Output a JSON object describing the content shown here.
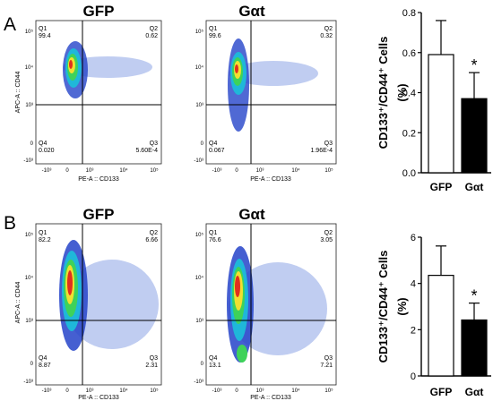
{
  "panels": [
    {
      "letter": "A",
      "flow_plots": [
        {
          "title": "GFP",
          "xlabel": "PE-A :: CD133",
          "ylabel": "APC-A :: CD44",
          "x_ticks": [
            "-10³",
            "0",
            "10³",
            "10⁴",
            "10⁵"
          ],
          "y_ticks": [
            "10⁵",
            "10⁴",
            "10³",
            "0",
            "-10³"
          ],
          "quadrants": [
            {
              "label": "Q1",
              "value": "99.4"
            },
            {
              "label": "Q2",
              "value": "0.62"
            },
            {
              "label": "Q3",
              "value": "5.60E-4"
            },
            {
              "label": "Q4",
              "value": "0.020"
            }
          ]
        },
        {
          "title": "Gαt",
          "xlabel": "PE-A :: CD133",
          "ylabel": "",
          "x_ticks": [
            "-10³",
            "0",
            "10³",
            "10⁴",
            "10⁵"
          ],
          "y_ticks": [
            "10⁵",
            "10⁴",
            "10³",
            "0",
            "-10³"
          ],
          "quadrants": [
            {
              "label": "Q1",
              "value": "99.6"
            },
            {
              "label": "Q2",
              "value": "0.32"
            },
            {
              "label": "Q3",
              "value": "1.96E-4"
            },
            {
              "label": "Q4",
              "value": "0.067"
            }
          ]
        }
      ]
    },
    {
      "letter": "B",
      "flow_plots": [
        {
          "title": "GFP",
          "xlabel": "PE-A :: CD133",
          "ylabel": "APC-A :: CD44",
          "x_ticks": [
            "-10³",
            "0",
            "10³",
            "10⁴",
            "10⁵"
          ],
          "y_ticks": [
            "10⁵",
            "10⁴",
            "10³",
            "0",
            "-10³"
          ],
          "quadrants": [
            {
              "label": "Q1",
              "value": "82.2"
            },
            {
              "label": "Q2",
              "value": "6.66"
            },
            {
              "label": "Q3",
              "value": "2.31"
            },
            {
              "label": "Q4",
              "value": "8.87"
            }
          ]
        },
        {
          "title": "Gαt",
          "xlabel": "PE-A :: CD133",
          "ylabel": "",
          "x_ticks": [
            "-10³",
            "0",
            "10³",
            "10⁴",
            "10⁵"
          ],
          "y_ticks": [
            "10⁵",
            "10⁴",
            "10³",
            "0",
            "-10³"
          ],
          "quadrants": [
            {
              "label": "Q1",
              "value": "76.6"
            },
            {
              "label": "Q2",
              "value": "3.05"
            },
            {
              "label": "Q3",
              "value": "7.21"
            },
            {
              "label": "Q4",
              "value": "13.1"
            }
          ]
        }
      ]
    }
  ],
  "colors": {
    "gfp_bar": "#ffffff",
    "galphat_bar": "#000000",
    "density_low": "#1f3fbf",
    "density_high": "#d71e1e"
  },
  "chart_data": [
    {
      "type": "bar",
      "panel": "A",
      "categories": [
        "GFP",
        "Gαt"
      ],
      "values": [
        0.59,
        0.37
      ],
      "error_upper": [
        0.76,
        0.5
      ],
      "ylabel_main": "CD133⁺/CD44⁺ Cells",
      "ylabel_unit": "(%)",
      "ylim": [
        0.0,
        0.8
      ],
      "yticks": [
        "0.0",
        "0.2",
        "0.4",
        "0.6",
        "0.8"
      ],
      "ytick_values": [
        0.0,
        0.2,
        0.4,
        0.6,
        0.8
      ],
      "significance": [
        "",
        "*"
      ],
      "grid": false
    },
    {
      "type": "bar",
      "panel": "B",
      "categories": [
        "GFP",
        "Gαt"
      ],
      "values": [
        4.35,
        2.42
      ],
      "error_upper": [
        5.62,
        3.15
      ],
      "ylabel_main": "CD133⁺/CD44⁺ Cells",
      "ylabel_unit": "(%)",
      "ylim": [
        0,
        6
      ],
      "yticks": [
        "0",
        "2",
        "4",
        "6"
      ],
      "ytick_values": [
        0,
        2,
        4,
        6
      ],
      "significance": [
        "",
        "*"
      ],
      "grid": false
    }
  ]
}
